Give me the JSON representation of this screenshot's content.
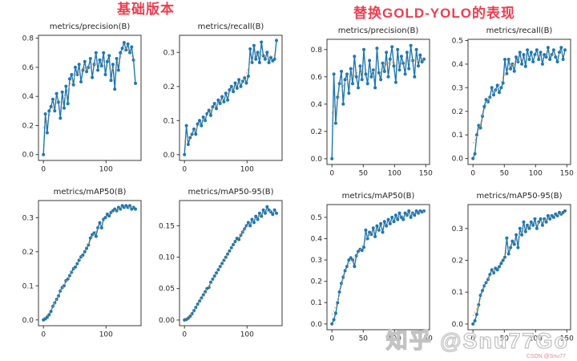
{
  "page": {
    "background": "#ffffff"
  },
  "groups": [
    {
      "title": "基础版本",
      "title_color": "#ee3e50"
    },
    {
      "title": "替换GOLD-YOLO的表现",
      "title_color": "#ee3e50"
    }
  ],
  "watermark": {
    "text": "知乎 @Snu77Go",
    "sub_text": "CSDN @Snu77"
  },
  "colors": {
    "line": "#1f77b4",
    "smooth": "#efa23f",
    "axis": "#3a3a3a",
    "text": "#262626"
  },
  "chart_data": [
    {
      "group": 0,
      "type": "line",
      "title": "metrics/precision(B)",
      "xlabel": "",
      "ylabel": "",
      "grid": false,
      "legend": "none",
      "smooth_trend_line": true,
      "xticks": [
        0,
        100
      ],
      "yticks": [
        0.0,
        0.2,
        0.4,
        0.6,
        0.8
      ],
      "ydecimals": 1,
      "xlim": [
        -8,
        156
      ],
      "ylim": [
        -0.04,
        0.82
      ],
      "x": [
        0,
        3,
        6,
        9,
        12,
        15,
        18,
        21,
        24,
        27,
        30,
        33,
        36,
        39,
        42,
        45,
        48,
        51,
        54,
        57,
        60,
        63,
        66,
        69,
        72,
        75,
        78,
        81,
        84,
        87,
        90,
        93,
        96,
        99,
        102,
        105,
        108,
        111,
        114,
        117,
        120,
        123,
        126,
        129,
        132,
        135,
        138,
        141,
        144,
        147
      ],
      "y": [
        0.0,
        0.28,
        0.15,
        0.3,
        0.33,
        0.38,
        0.3,
        0.42,
        0.36,
        0.25,
        0.43,
        0.32,
        0.47,
        0.35,
        0.52,
        0.55,
        0.48,
        0.6,
        0.55,
        0.62,
        0.5,
        0.58,
        0.64,
        0.57,
        0.6,
        0.66,
        0.53,
        0.62,
        0.7,
        0.58,
        0.65,
        0.61,
        0.7,
        0.55,
        0.64,
        0.68,
        0.51,
        0.62,
        0.45,
        0.66,
        0.58,
        0.7,
        0.73,
        0.77,
        0.72,
        0.76,
        0.7,
        0.74,
        0.65,
        0.49
      ]
    },
    {
      "group": 0,
      "type": "line",
      "title": "metrics/recall(B)",
      "xlabel": "",
      "ylabel": "",
      "grid": false,
      "legend": "none",
      "smooth_trend_line": true,
      "xticks": [
        0,
        100
      ],
      "yticks": [
        0.0,
        0.1,
        0.2,
        0.3
      ],
      "ydecimals": 1,
      "xlim": [
        -8,
        156
      ],
      "ylim": [
        -0.017,
        0.35
      ],
      "x": [
        0,
        3,
        6,
        9,
        12,
        15,
        18,
        21,
        24,
        27,
        30,
        33,
        36,
        39,
        42,
        45,
        48,
        51,
        54,
        57,
        60,
        63,
        66,
        69,
        72,
        75,
        78,
        81,
        84,
        87,
        90,
        93,
        96,
        99,
        102,
        105,
        108,
        111,
        114,
        117,
        120,
        123,
        126,
        129,
        132,
        135,
        138,
        141,
        144,
        147
      ],
      "y": [
        0.0,
        0.085,
        0.03,
        0.05,
        0.06,
        0.075,
        0.06,
        0.09,
        0.1,
        0.085,
        0.11,
        0.1,
        0.12,
        0.13,
        0.115,
        0.14,
        0.15,
        0.135,
        0.16,
        0.15,
        0.17,
        0.155,
        0.18,
        0.16,
        0.19,
        0.2,
        0.185,
        0.21,
        0.195,
        0.22,
        0.2,
        0.215,
        0.225,
        0.21,
        0.23,
        0.31,
        0.27,
        0.32,
        0.28,
        0.3,
        0.27,
        0.33,
        0.29,
        0.28,
        0.3,
        0.27,
        0.285,
        0.275,
        0.28,
        0.335
      ]
    },
    {
      "group": 0,
      "type": "line",
      "title": "metrics/mAP50(B)",
      "xlabel": "",
      "ylabel": "",
      "grid": false,
      "legend": "none",
      "smooth_trend_line": true,
      "xticks": [
        0,
        100
      ],
      "yticks": [
        0.0,
        0.1,
        0.2,
        0.3
      ],
      "ydecimals": 1,
      "xlim": [
        -8,
        156
      ],
      "ylim": [
        -0.017,
        0.35
      ],
      "x": [
        0,
        3,
        6,
        9,
        12,
        15,
        18,
        21,
        24,
        27,
        30,
        33,
        36,
        39,
        42,
        45,
        48,
        51,
        54,
        57,
        60,
        63,
        66,
        69,
        72,
        75,
        78,
        81,
        84,
        87,
        90,
        93,
        96,
        99,
        102,
        105,
        108,
        111,
        114,
        117,
        120,
        123,
        126,
        129,
        132,
        135,
        138,
        141,
        144,
        147
      ],
      "y": [
        0.0,
        0.003,
        0.008,
        0.015,
        0.025,
        0.04,
        0.05,
        0.06,
        0.07,
        0.085,
        0.095,
        0.1,
        0.115,
        0.12,
        0.13,
        0.14,
        0.15,
        0.155,
        0.165,
        0.175,
        0.185,
        0.19,
        0.2,
        0.21,
        0.22,
        0.24,
        0.25,
        0.255,
        0.245,
        0.27,
        0.285,
        0.27,
        0.295,
        0.3,
        0.31,
        0.305,
        0.315,
        0.32,
        0.325,
        0.32,
        0.33,
        0.325,
        0.335,
        0.33,
        0.335,
        0.33,
        0.335,
        0.325,
        0.33,
        0.325
      ]
    },
    {
      "group": 0,
      "type": "line",
      "title": "metrics/mAP50-95(B)",
      "xlabel": "",
      "ylabel": "",
      "grid": false,
      "legend": "none",
      "smooth_trend_line": true,
      "xticks": [
        0,
        100
      ],
      "yticks": [
        0.0,
        0.05,
        0.1,
        0.15
      ],
      "ydecimals": 2,
      "xlim": [
        -8,
        156
      ],
      "ylim": [
        -0.009,
        0.19
      ],
      "x": [
        0,
        3,
        6,
        9,
        12,
        15,
        18,
        21,
        24,
        27,
        30,
        33,
        36,
        39,
        42,
        45,
        48,
        51,
        54,
        57,
        60,
        63,
        66,
        69,
        72,
        75,
        78,
        81,
        84,
        87,
        90,
        93,
        96,
        99,
        102,
        105,
        108,
        111,
        114,
        117,
        120,
        123,
        126,
        129,
        132,
        135,
        138,
        141,
        144,
        147
      ],
      "y": [
        0.0,
        0.001,
        0.003,
        0.006,
        0.01,
        0.015,
        0.02,
        0.025,
        0.03,
        0.035,
        0.04,
        0.045,
        0.05,
        0.052,
        0.06,
        0.065,
        0.07,
        0.075,
        0.08,
        0.085,
        0.09,
        0.095,
        0.1,
        0.105,
        0.11,
        0.115,
        0.12,
        0.125,
        0.13,
        0.128,
        0.135,
        0.14,
        0.145,
        0.15,
        0.155,
        0.15,
        0.16,
        0.155,
        0.165,
        0.16,
        0.17,
        0.165,
        0.175,
        0.17,
        0.18,
        0.175,
        0.172,
        0.168,
        0.175,
        0.17
      ]
    },
    {
      "group": 1,
      "type": "line",
      "title": "metrics/precision(B)",
      "xlabel": "",
      "ylabel": "",
      "grid": false,
      "legend": "none",
      "smooth_trend_line": true,
      "xticks": [
        0,
        50,
        100,
        150
      ],
      "yticks": [
        0.0,
        0.2,
        0.4,
        0.6,
        0.8
      ],
      "ydecimals": 1,
      "xlim": [
        -8,
        156
      ],
      "ylim": [
        -0.042,
        0.875
      ],
      "x": [
        0,
        3,
        6,
        9,
        12,
        15,
        18,
        21,
        24,
        27,
        30,
        33,
        36,
        39,
        42,
        45,
        48,
        51,
        54,
        57,
        60,
        63,
        66,
        69,
        72,
        75,
        78,
        81,
        84,
        87,
        90,
        93,
        96,
        99,
        102,
        105,
        108,
        111,
        114,
        117,
        120,
        123,
        126,
        129,
        132,
        135,
        138,
        141,
        144,
        147
      ],
      "y": [
        0.0,
        0.62,
        0.26,
        0.45,
        0.55,
        0.64,
        0.4,
        0.58,
        0.62,
        0.48,
        0.66,
        0.55,
        0.75,
        0.6,
        0.52,
        0.68,
        0.58,
        0.8,
        0.62,
        0.55,
        0.72,
        0.6,
        0.65,
        0.52,
        0.81,
        0.63,
        0.58,
        0.7,
        0.64,
        0.78,
        0.6,
        0.73,
        0.82,
        0.68,
        0.56,
        0.8,
        0.65,
        0.75,
        0.7,
        0.62,
        0.78,
        0.66,
        0.83,
        0.72,
        0.6,
        0.8,
        0.68,
        0.76,
        0.71,
        0.73
      ]
    },
    {
      "group": 1,
      "type": "line",
      "title": "metrics/recall(B)",
      "xlabel": "",
      "ylabel": "",
      "grid": false,
      "legend": "none",
      "smooth_trend_line": true,
      "xticks": [
        0,
        50,
        100,
        150
      ],
      "yticks": [
        0.0,
        0.1,
        0.2,
        0.3,
        0.4,
        0.5
      ],
      "ydecimals": 1,
      "xlim": [
        -8,
        156
      ],
      "ylim": [
        -0.025,
        0.505
      ],
      "x": [
        0,
        3,
        6,
        9,
        12,
        15,
        18,
        21,
        24,
        27,
        30,
        33,
        36,
        39,
        42,
        45,
        48,
        51,
        54,
        57,
        60,
        63,
        66,
        69,
        72,
        75,
        78,
        81,
        84,
        87,
        90,
        93,
        96,
        99,
        102,
        105,
        108,
        111,
        114,
        117,
        120,
        123,
        126,
        129,
        132,
        135,
        138,
        141,
        144,
        147
      ],
      "y": [
        0.0,
        0.02,
        0.1,
        0.14,
        0.13,
        0.18,
        0.22,
        0.25,
        0.24,
        0.26,
        0.3,
        0.27,
        0.29,
        0.31,
        0.28,
        0.3,
        0.32,
        0.42,
        0.36,
        0.42,
        0.38,
        0.4,
        0.37,
        0.43,
        0.41,
        0.45,
        0.4,
        0.44,
        0.39,
        0.46,
        0.42,
        0.45,
        0.41,
        0.44,
        0.46,
        0.42,
        0.45,
        0.4,
        0.44,
        0.43,
        0.47,
        0.42,
        0.44,
        0.46,
        0.43,
        0.41,
        0.45,
        0.47,
        0.42,
        0.46
      ]
    },
    {
      "group": 1,
      "type": "line",
      "title": "metrics/mAP50(B)",
      "xlabel": "",
      "ylabel": "",
      "grid": false,
      "legend": "none",
      "smooth_trend_line": true,
      "xticks": [
        0,
        50,
        100,
        150
      ],
      "yticks": [
        0.0,
        0.1,
        0.2,
        0.3,
        0.4,
        0.5
      ],
      "ydecimals": 1,
      "xlim": [
        -8,
        156
      ],
      "ylim": [
        -0.027,
        0.56
      ],
      "x": [
        0,
        3,
        6,
        9,
        12,
        15,
        18,
        21,
        24,
        27,
        30,
        33,
        36,
        39,
        42,
        45,
        48,
        51,
        54,
        57,
        60,
        63,
        66,
        69,
        72,
        75,
        78,
        81,
        84,
        87,
        90,
        93,
        96,
        99,
        102,
        105,
        108,
        111,
        114,
        117,
        120,
        123,
        126,
        129,
        132,
        135,
        138,
        141,
        144,
        147
      ],
      "y": [
        0.0,
        0.02,
        0.05,
        0.1,
        0.15,
        0.19,
        0.22,
        0.25,
        0.27,
        0.3,
        0.31,
        0.3,
        0.27,
        0.32,
        0.34,
        0.35,
        0.345,
        0.36,
        0.44,
        0.4,
        0.43,
        0.42,
        0.45,
        0.41,
        0.46,
        0.44,
        0.47,
        0.43,
        0.48,
        0.46,
        0.49,
        0.47,
        0.5,
        0.48,
        0.51,
        0.49,
        0.52,
        0.5,
        0.49,
        0.52,
        0.51,
        0.53,
        0.5,
        0.52,
        0.51,
        0.53,
        0.52,
        0.53,
        0.525,
        0.53
      ]
    },
    {
      "group": 1,
      "type": "line",
      "title": "metrics/mAP50-95(B)",
      "xlabel": "",
      "ylabel": "",
      "grid": false,
      "legend": "none",
      "smooth_trend_line": true,
      "xticks": [
        0,
        50,
        100,
        150
      ],
      "yticks": [
        0.0,
        0.1,
        0.2,
        0.3
      ],
      "ydecimals": 1,
      "xlim": [
        -8,
        156
      ],
      "ylim": [
        -0.018,
        0.375
      ],
      "x": [
        0,
        3,
        6,
        9,
        12,
        15,
        18,
        21,
        24,
        27,
        30,
        33,
        36,
        39,
        42,
        45,
        48,
        51,
        54,
        57,
        60,
        63,
        66,
        69,
        72,
        75,
        78,
        81,
        84,
        87,
        90,
        93,
        96,
        99,
        102,
        105,
        108,
        111,
        114,
        117,
        120,
        123,
        126,
        129,
        132,
        135,
        138,
        141,
        144,
        147
      ],
      "y": [
        0.0,
        0.01,
        0.03,
        0.06,
        0.09,
        0.105,
        0.12,
        0.13,
        0.14,
        0.155,
        0.17,
        0.16,
        0.175,
        0.17,
        0.18,
        0.19,
        0.2,
        0.21,
        0.27,
        0.22,
        0.24,
        0.26,
        0.25,
        0.28,
        0.24,
        0.3,
        0.28,
        0.32,
        0.29,
        0.31,
        0.3,
        0.32,
        0.31,
        0.33,
        0.3,
        0.32,
        0.33,
        0.31,
        0.33,
        0.32,
        0.34,
        0.33,
        0.34,
        0.335,
        0.345,
        0.34,
        0.35,
        0.345,
        0.35,
        0.355
      ]
    }
  ]
}
